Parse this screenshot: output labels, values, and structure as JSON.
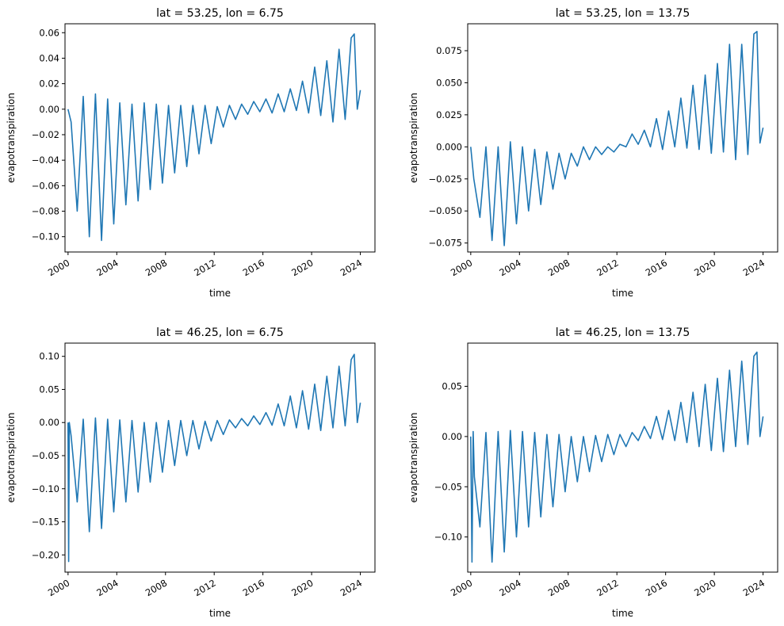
{
  "chart_data": [
    {
      "type": "line",
      "title": "lat = 53.25, lon = 6.75",
      "xlabel": "time",
      "ylabel": "evapotranspiration",
      "xlim": [
        1999.75,
        2025.2
      ],
      "ylim": [
        -0.112,
        0.067
      ],
      "x_ticks": [
        2000,
        2004,
        2008,
        2012,
        2016,
        2020,
        2024
      ],
      "x_tick_labels": [
        "2000",
        "2004",
        "2008",
        "2012",
        "2016",
        "2020",
        "2024"
      ],
      "y_ticks": [
        -0.1,
        -0.08,
        -0.06,
        -0.04,
        -0.02,
        0.0,
        0.02,
        0.04,
        0.06
      ],
      "y_tick_labels": [
        "−0.10",
        "−0.08",
        "−0.06",
        "−0.04",
        "−0.02",
        "0.00",
        "0.02",
        "0.04",
        "0.06"
      ],
      "color": "#1f77b4",
      "series": [
        {
          "name": "evapotranspiration",
          "x": [
            2000.0,
            2000.25,
            2000.75,
            2001.25,
            2001.75,
            2002.25,
            2002.75,
            2003.25,
            2003.75,
            2004.25,
            2004.75,
            2005.25,
            2005.75,
            2006.25,
            2006.75,
            2007.25,
            2007.75,
            2008.25,
            2008.75,
            2009.25,
            2009.75,
            2010.25,
            2010.75,
            2011.25,
            2011.75,
            2012.25,
            2012.75,
            2013.25,
            2013.75,
            2014.25,
            2014.75,
            2015.25,
            2015.75,
            2016.25,
            2016.75,
            2017.25,
            2017.75,
            2018.25,
            2018.75,
            2019.25,
            2019.75,
            2020.25,
            2020.75,
            2021.25,
            2021.75,
            2022.25,
            2022.75,
            2023.25,
            2023.5,
            2023.75,
            2024.0
          ],
          "y": [
            0.0,
            -0.01,
            -0.08,
            0.01,
            -0.1,
            0.012,
            -0.103,
            0.008,
            -0.09,
            0.005,
            -0.075,
            0.004,
            -0.072,
            0.005,
            -0.063,
            0.004,
            -0.058,
            0.003,
            -0.05,
            0.003,
            -0.045,
            0.003,
            -0.035,
            0.003,
            -0.027,
            0.002,
            -0.014,
            0.003,
            -0.008,
            0.004,
            -0.004,
            0.006,
            -0.002,
            0.008,
            -0.003,
            0.012,
            -0.002,
            0.016,
            -0.001,
            0.022,
            -0.003,
            0.033,
            -0.005,
            0.038,
            -0.01,
            0.047,
            -0.008,
            0.056,
            0.059,
            0.0,
            0.015
          ]
        }
      ]
    },
    {
      "type": "line",
      "title": "lat = 53.25, lon = 13.75",
      "xlabel": "time",
      "ylabel": "evapotranspiration",
      "xlim": [
        1999.75,
        2025.2
      ],
      "ylim": [
        -0.082,
        0.096
      ],
      "x_ticks": [
        2000,
        2004,
        2008,
        2012,
        2016,
        2020,
        2024
      ],
      "x_tick_labels": [
        "2000",
        "2004",
        "2008",
        "2012",
        "2016",
        "2020",
        "2024"
      ],
      "y_ticks": [
        -0.075,
        -0.05,
        -0.025,
        0.0,
        0.025,
        0.05,
        0.075
      ],
      "y_tick_labels": [
        "−0.075",
        "−0.050",
        "−0.025",
        "0.000",
        "0.025",
        "0.050",
        "0.075"
      ],
      "color": "#1f77b4",
      "series": [
        {
          "name": "evapotranspiration",
          "x": [
            2000.0,
            2000.25,
            2000.75,
            2001.25,
            2001.75,
            2002.25,
            2002.75,
            2003.25,
            2003.75,
            2004.25,
            2004.75,
            2005.25,
            2005.75,
            2006.25,
            2006.75,
            2007.25,
            2007.75,
            2008.25,
            2008.75,
            2009.25,
            2009.75,
            2010.25,
            2010.75,
            2011.25,
            2011.75,
            2012.25,
            2012.75,
            2013.25,
            2013.75,
            2014.25,
            2014.75,
            2015.25,
            2015.75,
            2016.25,
            2016.75,
            2017.25,
            2017.75,
            2018.25,
            2018.75,
            2019.25,
            2019.75,
            2020.25,
            2020.75,
            2021.25,
            2021.75,
            2022.25,
            2022.75,
            2023.25,
            2023.5,
            2023.75,
            2024.0
          ],
          "y": [
            0.0,
            -0.025,
            -0.055,
            0.0,
            -0.073,
            0.0,
            -0.077,
            0.004,
            -0.06,
            0.0,
            -0.05,
            -0.002,
            -0.045,
            -0.004,
            -0.033,
            -0.005,
            -0.025,
            -0.005,
            -0.015,
            0.0,
            -0.01,
            0.0,
            -0.006,
            0.0,
            -0.004,
            0.002,
            0.0,
            0.01,
            0.002,
            0.013,
            0.0,
            0.022,
            -0.002,
            0.028,
            0.0,
            0.038,
            -0.001,
            0.048,
            -0.002,
            0.056,
            -0.005,
            0.065,
            -0.004,
            0.08,
            -0.01,
            0.08,
            -0.006,
            0.088,
            0.09,
            0.003,
            0.015
          ]
        }
      ]
    },
    {
      "type": "line",
      "title": "lat = 46.25, lon = 6.75",
      "xlabel": "time",
      "ylabel": "evapotranspiration",
      "xlim": [
        1999.75,
        2025.2
      ],
      "ylim": [
        -0.226,
        0.12
      ],
      "x_ticks": [
        2000,
        2004,
        2008,
        2012,
        2016,
        2020,
        2024
      ],
      "x_tick_labels": [
        "2000",
        "2004",
        "2008",
        "2012",
        "2016",
        "2020",
        "2024"
      ],
      "y_ticks": [
        -0.2,
        -0.15,
        -0.1,
        -0.05,
        0.0,
        0.05,
        0.1
      ],
      "y_tick_labels": [
        "−0.20",
        "−0.15",
        "−0.10",
        "−0.05",
        "0.00",
        "0.05",
        "0.10"
      ],
      "color": "#1f77b4",
      "series": [
        {
          "name": "evapotranspiration",
          "x": [
            2000.0,
            2000.05,
            2000.1,
            2000.25,
            2000.75,
            2001.25,
            2001.75,
            2002.25,
            2002.75,
            2003.25,
            2003.75,
            2004.25,
            2004.75,
            2005.25,
            2005.75,
            2006.25,
            2006.75,
            2007.25,
            2007.75,
            2008.25,
            2008.75,
            2009.25,
            2009.75,
            2010.25,
            2010.75,
            2011.25,
            2011.75,
            2012.25,
            2012.75,
            2013.25,
            2013.75,
            2014.25,
            2014.75,
            2015.25,
            2015.75,
            2016.25,
            2016.75,
            2017.25,
            2017.75,
            2018.25,
            2018.75,
            2019.25,
            2019.75,
            2020.25,
            2020.75,
            2021.25,
            2021.75,
            2022.25,
            2022.75,
            2023.25,
            2023.5,
            2023.75,
            2024.0
          ],
          "y": [
            0.0,
            -0.21,
            0.0,
            -0.02,
            -0.12,
            0.005,
            -0.165,
            0.007,
            -0.16,
            0.005,
            -0.135,
            0.004,
            -0.12,
            0.003,
            -0.105,
            0.0,
            -0.09,
            0.0,
            -0.075,
            0.003,
            -0.065,
            0.003,
            -0.05,
            0.003,
            -0.04,
            0.002,
            -0.028,
            0.003,
            -0.018,
            0.004,
            -0.008,
            0.006,
            -0.005,
            0.01,
            -0.003,
            0.015,
            -0.004,
            0.028,
            -0.005,
            0.04,
            -0.008,
            0.048,
            -0.01,
            0.058,
            -0.012,
            0.07,
            -0.008,
            0.085,
            -0.005,
            0.095,
            0.103,
            0.0,
            0.03
          ]
        }
      ]
    },
    {
      "type": "line",
      "title": "lat = 46.25, lon = 13.75",
      "xlabel": "time",
      "ylabel": "evapotranspiration",
      "xlim": [
        1999.75,
        2025.2
      ],
      "ylim": [
        -0.135,
        0.093
      ],
      "x_ticks": [
        2000,
        2004,
        2008,
        2012,
        2016,
        2020,
        2024
      ],
      "x_tick_labels": [
        "2000",
        "2004",
        "2008",
        "2012",
        "2016",
        "2020",
        "2024"
      ],
      "y_ticks": [
        -0.1,
        -0.05,
        0.0,
        0.05
      ],
      "y_tick_labels": [
        "−0.10",
        "−0.05",
        "0.00",
        "0.05"
      ],
      "color": "#1f77b4",
      "series": [
        {
          "name": "evapotranspiration",
          "x": [
            2000.0,
            2000.1,
            2000.2,
            2000.3,
            2000.75,
            2001.25,
            2001.75,
            2002.25,
            2002.75,
            2003.25,
            2003.75,
            2004.25,
            2004.75,
            2005.25,
            2005.75,
            2006.25,
            2006.75,
            2007.25,
            2007.75,
            2008.25,
            2008.75,
            2009.25,
            2009.75,
            2010.25,
            2010.75,
            2011.25,
            2011.75,
            2012.25,
            2012.75,
            2013.25,
            2013.75,
            2014.25,
            2014.75,
            2015.25,
            2015.75,
            2016.25,
            2016.75,
            2017.25,
            2017.75,
            2018.25,
            2018.75,
            2019.25,
            2019.75,
            2020.25,
            2020.75,
            2021.25,
            2021.75,
            2022.25,
            2022.75,
            2023.25,
            2023.5,
            2023.75,
            2024.0
          ],
          "y": [
            0.0,
            -0.125,
            0.005,
            -0.04,
            -0.09,
            0.004,
            -0.125,
            0.005,
            -0.115,
            0.006,
            -0.1,
            0.005,
            -0.09,
            0.004,
            -0.08,
            0.002,
            -0.07,
            0.002,
            -0.055,
            0.0,
            -0.045,
            0.0,
            -0.035,
            0.001,
            -0.025,
            0.002,
            -0.018,
            0.002,
            -0.01,
            0.004,
            -0.004,
            0.01,
            -0.002,
            0.02,
            -0.003,
            0.026,
            -0.004,
            0.034,
            -0.006,
            0.044,
            -0.01,
            0.052,
            -0.014,
            0.058,
            -0.015,
            0.066,
            -0.01,
            0.075,
            -0.008,
            0.08,
            0.084,
            0.0,
            0.02
          ]
        }
      ]
    }
  ]
}
